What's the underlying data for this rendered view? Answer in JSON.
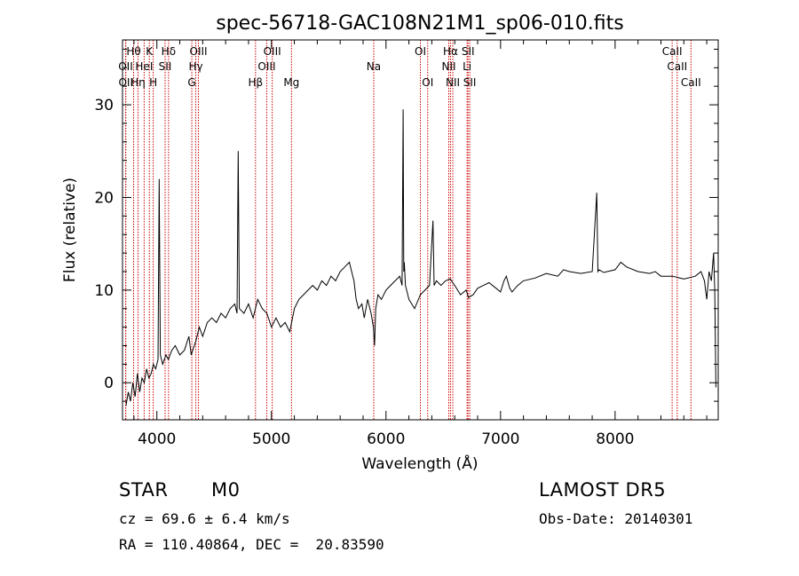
{
  "chart_data": {
    "type": "line",
    "title": "spec-56718-GAC108N21M1_sp06-010.fits",
    "xlabel": "Wavelength (Å)",
    "ylabel": "Flux (relative)",
    "xlim": [
      3700,
      8900
    ],
    "ylim": [
      -4,
      37
    ],
    "x_ticks": [
      4000,
      5000,
      6000,
      7000,
      8000
    ],
    "y_ticks": [
      0,
      10,
      20,
      30
    ],
    "grid": false,
    "line_color": "#000000",
    "marker_color": "#cc0000",
    "spectrum": {
      "x": [
        3730,
        3750,
        3770,
        3790,
        3810,
        3830,
        3850,
        3870,
        3890,
        3910,
        3930,
        3950,
        3970,
        3990,
        4010,
        4020,
        4030,
        4050,
        4080,
        4100,
        4130,
        4160,
        4200,
        4240,
        4280,
        4300,
        4340,
        4370,
        4400,
        4440,
        4480,
        4520,
        4560,
        4600,
        4640,
        4680,
        4700,
        4710,
        4720,
        4760,
        4800,
        4840,
        4880,
        4920,
        4960,
        5000,
        5040,
        5080,
        5120,
        5160,
        5200,
        5240,
        5280,
        5320,
        5360,
        5400,
        5440,
        5480,
        5520,
        5560,
        5600,
        5640,
        5680,
        5700,
        5720,
        5740,
        5760,
        5790,
        5810,
        5840,
        5870,
        5890,
        5900,
        5910,
        5930,
        5960,
        6000,
        6040,
        6080,
        6120,
        6140,
        6150,
        6155,
        6160,
        6170,
        6200,
        6250,
        6300,
        6340,
        6380,
        6410,
        6420,
        6440,
        6480,
        6520,
        6560,
        6600,
        6650,
        6700,
        6720,
        6760,
        6800,
        6850,
        6900,
        6950,
        7000,
        7030,
        7050,
        7080,
        7100,
        7150,
        7200,
        7300,
        7400,
        7500,
        7550,
        7600,
        7700,
        7800,
        7840,
        7850,
        7860,
        7900,
        8000,
        8050,
        8100,
        8200,
        8300,
        8350,
        8400,
        8500,
        8600,
        8700,
        8750,
        8780,
        8800,
        8820,
        8840,
        8860,
        8870,
        8880
      ],
      "y": [
        -2.5,
        -1,
        -2,
        0,
        -1.5,
        1,
        -1,
        0.5,
        0,
        1.5,
        0.5,
        1,
        2,
        1.5,
        2.5,
        22,
        3,
        2,
        3,
        2.5,
        3.5,
        4,
        3,
        3.5,
        5,
        3,
        4.5,
        6,
        5,
        6.5,
        7,
        6.5,
        7.5,
        7,
        8,
        8.5,
        7.5,
        25,
        8,
        7.5,
        8.5,
        7,
        9,
        8,
        7.5,
        6,
        7,
        6,
        6.5,
        5.5,
        8,
        9,
        9.5,
        10,
        10.5,
        10,
        11,
        10.5,
        11.5,
        11,
        12,
        12.5,
        13,
        12,
        11,
        9,
        8,
        8.5,
        7,
        9,
        7.5,
        6,
        4,
        8,
        9.5,
        9,
        10,
        10.5,
        11,
        11.5,
        10.5,
        29.5,
        12,
        13,
        10.5,
        9,
        8,
        9.5,
        10,
        10.5,
        17.5,
        10.5,
        11,
        10.5,
        11,
        11.2,
        10.5,
        9.5,
        10,
        9.2,
        9.5,
        10.2,
        10.5,
        10.8,
        10.3,
        9.8,
        11,
        11.5,
        10.2,
        9.8,
        10.5,
        11,
        11.3,
        11.8,
        11.5,
        12.2,
        12,
        11.8,
        12,
        20.5,
        12,
        12.2,
        11.9,
        12.2,
        13,
        12.5,
        12,
        11.8,
        12,
        11.5,
        11.5,
        11.2,
        11.5,
        12,
        11,
        9,
        12,
        11,
        14,
        10,
        -0.5
      ]
    },
    "lines": [
      {
        "label": "Hθ",
        "wavelength": 3797,
        "row": 1
      },
      {
        "label": "OII",
        "wavelength": 3727,
        "row": 2
      },
      {
        "label": "OII",
        "wavelength": 3729,
        "row": 3
      },
      {
        "label": "HeI",
        "wavelength": 3889,
        "row": 2
      },
      {
        "label": "Hη",
        "wavelength": 3835,
        "row": 3
      },
      {
        "label": "K",
        "wavelength": 3934,
        "row": 1
      },
      {
        "label": "H",
        "wavelength": 3968,
        "row": 3
      },
      {
        "label": "Hδ",
        "wavelength": 4102,
        "row": 1
      },
      {
        "label": "SII",
        "wavelength": 4072,
        "row": 2
      },
      {
        "label": "OIII",
        "wavelength": 4363,
        "row": 1
      },
      {
        "label": "Hγ",
        "wavelength": 4340,
        "row": 2
      },
      {
        "label": "G",
        "wavelength": 4305,
        "row": 3
      },
      {
        "label": "OIII",
        "wavelength": 5007,
        "row": 1
      },
      {
        "label": "OIII",
        "wavelength": 4959,
        "row": 2
      },
      {
        "label": "Hβ",
        "wavelength": 4861,
        "row": 3
      },
      {
        "label": "Mg",
        "wavelength": 5175,
        "row": 3
      },
      {
        "label": "Na",
        "wavelength": 5893,
        "row": 2
      },
      {
        "label": "OI",
        "wavelength": 6300,
        "row": 1
      },
      {
        "label": "OI",
        "wavelength": 6364,
        "row": 3
      },
      {
        "label": "Hα",
        "wavelength": 6563,
        "row": 1
      },
      {
        "label": "NII",
        "wavelength": 6548,
        "row": 2
      },
      {
        "label": "NII",
        "wavelength": 6583,
        "row": 3
      },
      {
        "label": "SII",
        "wavelength": 6716,
        "row": 1
      },
      {
        "label": "Li",
        "wavelength": 6708,
        "row": 2
      },
      {
        "label": "SII",
        "wavelength": 6731,
        "row": 3
      },
      {
        "label": "CaII",
        "wavelength": 8498,
        "row": 1
      },
      {
        "label": "CaII",
        "wavelength": 8542,
        "row": 2
      },
      {
        "label": "CaII",
        "wavelength": 8662,
        "row": 3
      }
    ]
  },
  "info": {
    "class": "STAR",
    "subclass": "M0",
    "survey": "LAMOST DR5",
    "cz": "cz = 69.6 ± 6.4 km/s",
    "obs_date": "Obs-Date: 20140301",
    "coords": "RA = 110.40864, DEC =  20.83590"
  }
}
